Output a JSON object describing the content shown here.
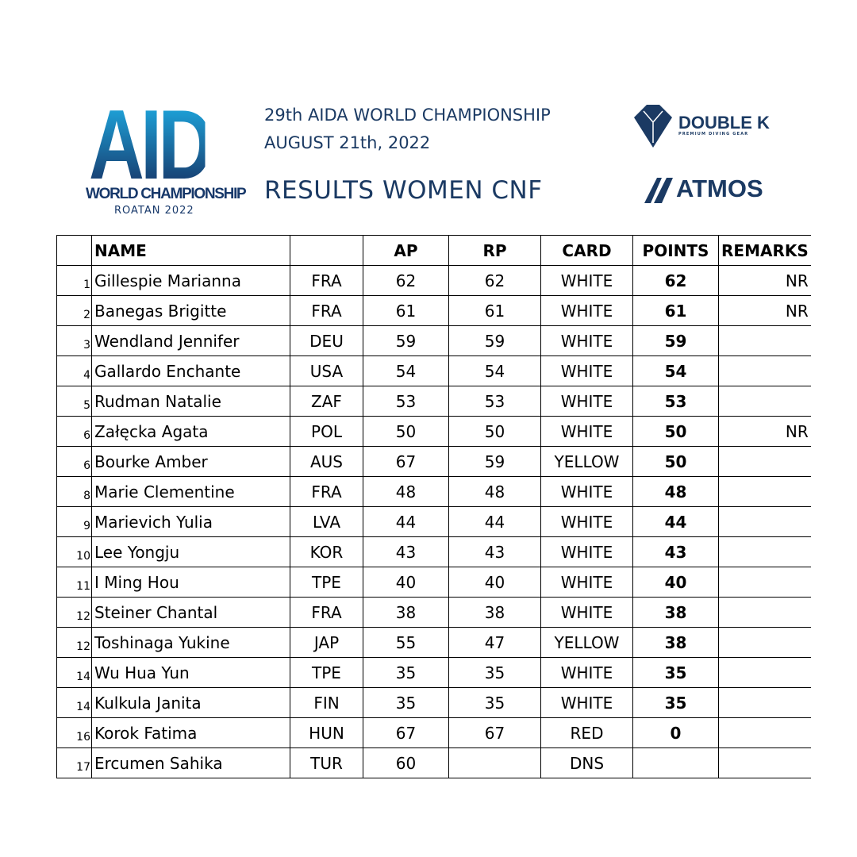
{
  "header": {
    "logo_text": "AIDA",
    "logo_subtitle": "WORLD CHAMPIONSHIP",
    "logo_location": "ROATAN 2022",
    "line1": "29th AIDA WORLD CHAMPIONSHIP",
    "line2": "AUGUST 21th, 2022",
    "title": "RESULTS WOMEN CNF"
  },
  "sponsors": {
    "doublek": "DOUBLE K",
    "doublek_sub": "PREMIUM DIVING GEAR",
    "atmos": "ATMOS"
  },
  "columns": {
    "rank": "",
    "name": "NAME",
    "country": "",
    "ap": "AP",
    "rp": "RP",
    "card": "CARD",
    "points": "POINTS",
    "remarks": "REMARKS"
  },
  "rows": [
    {
      "rank": "1",
      "name": "Gillespie Marianna",
      "country": "FRA",
      "ap": "62",
      "rp": "62",
      "card": "WHITE",
      "points": "62",
      "remarks": "NR"
    },
    {
      "rank": "2",
      "name": "Banegas Brigitte",
      "country": "FRA",
      "ap": "61",
      "rp": "61",
      "card": "WHITE",
      "points": "61",
      "remarks": "NR"
    },
    {
      "rank": "3",
      "name": "Wendland Jennifer",
      "country": "DEU",
      "ap": "59",
      "rp": "59",
      "card": "WHITE",
      "points": "59",
      "remarks": ""
    },
    {
      "rank": "4",
      "name": "Gallardo Enchante",
      "country": "USA",
      "ap": "54",
      "rp": "54",
      "card": "WHITE",
      "points": "54",
      "remarks": ""
    },
    {
      "rank": "5",
      "name": "Rudman Natalie",
      "country": "ZAF",
      "ap": "53",
      "rp": "53",
      "card": "WHITE",
      "points": "53",
      "remarks": ""
    },
    {
      "rank": "6",
      "name": "Załęcka Agata",
      "country": "POL",
      "ap": "50",
      "rp": "50",
      "card": "WHITE",
      "points": "50",
      "remarks": "NR"
    },
    {
      "rank": "6",
      "name": "Bourke Amber",
      "country": "AUS",
      "ap": "67",
      "rp": "59",
      "card": "YELLOW",
      "points": "50",
      "remarks": ""
    },
    {
      "rank": "8",
      "name": "Marie Clementine",
      "country": "FRA",
      "ap": "48",
      "rp": "48",
      "card": "WHITE",
      "points": "48",
      "remarks": ""
    },
    {
      "rank": "9",
      "name": "Marievich Yulia",
      "country": "LVA",
      "ap": "44",
      "rp": "44",
      "card": "WHITE",
      "points": "44",
      "remarks": ""
    },
    {
      "rank": "10",
      "name": "Lee Yongju",
      "country": "KOR",
      "ap": "43",
      "rp": "43",
      "card": "WHITE",
      "points": "43",
      "remarks": ""
    },
    {
      "rank": "11",
      "name": "I Ming Hou",
      "country": "TPE",
      "ap": "40",
      "rp": "40",
      "card": "WHITE",
      "points": "40",
      "remarks": ""
    },
    {
      "rank": "12",
      "name": "Steiner Chantal",
      "country": "FRA",
      "ap": "38",
      "rp": "38",
      "card": "WHITE",
      "points": "38",
      "remarks": ""
    },
    {
      "rank": "12",
      "name": "Toshinaga Yukine",
      "country": "JAP",
      "ap": "55",
      "rp": "47",
      "card": "YELLOW",
      "points": "38",
      "remarks": ""
    },
    {
      "rank": "14",
      "name": "Wu Hua Yun",
      "country": "TPE",
      "ap": "35",
      "rp": "35",
      "card": "WHITE",
      "points": "35",
      "remarks": ""
    },
    {
      "rank": "14",
      "name": "Kulkula Janita",
      "country": "FIN",
      "ap": "35",
      "rp": "35",
      "card": "WHITE",
      "points": "35",
      "remarks": ""
    },
    {
      "rank": "16",
      "name": "Korok Fatima",
      "country": "HUN",
      "ap": "67",
      "rp": "67",
      "card": "RED",
      "points": "0",
      "remarks": ""
    },
    {
      "rank": "17",
      "name": "Ercumen Sahika",
      "country": "TUR",
      "ap": "60",
      "rp": "",
      "card": "DNS",
      "points": "",
      "remarks": ""
    }
  ]
}
